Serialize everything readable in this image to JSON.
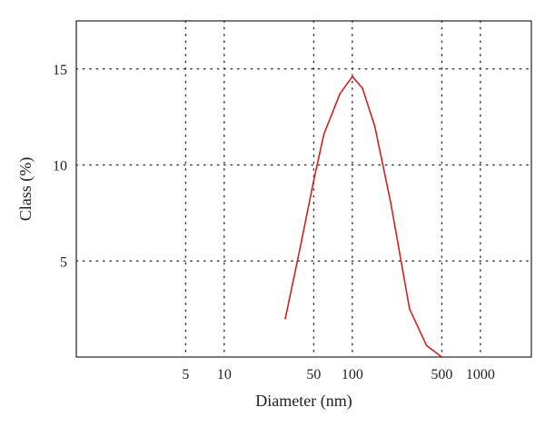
{
  "chart_data": {
    "type": "line",
    "title": "",
    "xlabel": "Diameter (nm)",
    "ylabel": "Class (%)",
    "x_scale": "log",
    "xlim": [
      0.7,
      2500
    ],
    "ylim": [
      0,
      17.5
    ],
    "x_ticks": [
      5,
      10,
      50,
      100,
      500,
      1000
    ],
    "x_tick_labels": [
      "5",
      "10",
      "50",
      "100",
      "500",
      "1000"
    ],
    "y_ticks": [
      5,
      10,
      15
    ],
    "y_tick_labels": [
      "5",
      "10",
      "15"
    ],
    "grid": true,
    "grid_style": "dotted",
    "line_color": "#d42020",
    "series": [
      {
        "x": [
          30,
          40,
          50,
          60,
          80,
          100,
          120,
          150,
          200,
          280,
          380,
          500
        ],
        "values": [
          2.0,
          6.0,
          9.2,
          11.6,
          13.7,
          14.6,
          14.0,
          12.0,
          8.0,
          2.5,
          0.6,
          0.0
        ]
      }
    ]
  }
}
